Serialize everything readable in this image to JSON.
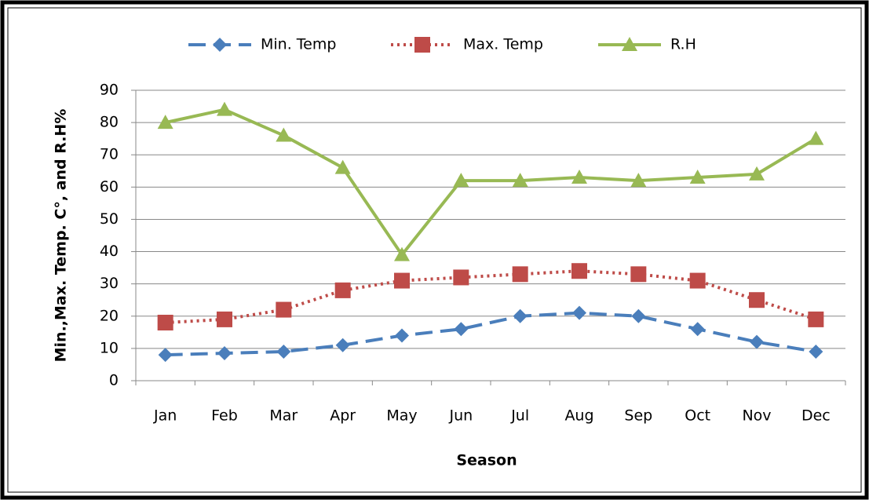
{
  "chart_data": {
    "type": "line",
    "categories": [
      "Jan",
      "Feb",
      "Mar",
      "Apr",
      "May",
      "Jun",
      "Jul",
      "Aug",
      "Sep",
      "Oct",
      "Nov",
      "Dec"
    ],
    "series": [
      {
        "name": "Min. Temp",
        "color": "#4a7ebb",
        "marker": "diamond",
        "dash": "dashed",
        "values": [
          8,
          8.5,
          9,
          11,
          14,
          16,
          20,
          21,
          20,
          16,
          12,
          9
        ]
      },
      {
        "name": "Max. Temp",
        "color": "#be4b48",
        "marker": "square",
        "dash": "dotted",
        "values": [
          18,
          19,
          22,
          28,
          31,
          32,
          33,
          34,
          33,
          31,
          25,
          19
        ]
      },
      {
        "name": "R.H",
        "color": "#98b954",
        "marker": "triangle",
        "dash": "solid",
        "values": [
          80,
          84,
          76,
          66,
          39,
          62,
          62,
          63,
          62,
          63,
          64,
          75
        ]
      }
    ],
    "x_label": "Season",
    "y_label": "Min.,Max. Temp. C°, and R.H%",
    "ylim": [
      0,
      90
    ],
    "yticks": [
      0,
      10,
      20,
      30,
      40,
      50,
      60,
      70,
      80,
      90
    ],
    "grid": true,
    "legend_position": "top"
  }
}
